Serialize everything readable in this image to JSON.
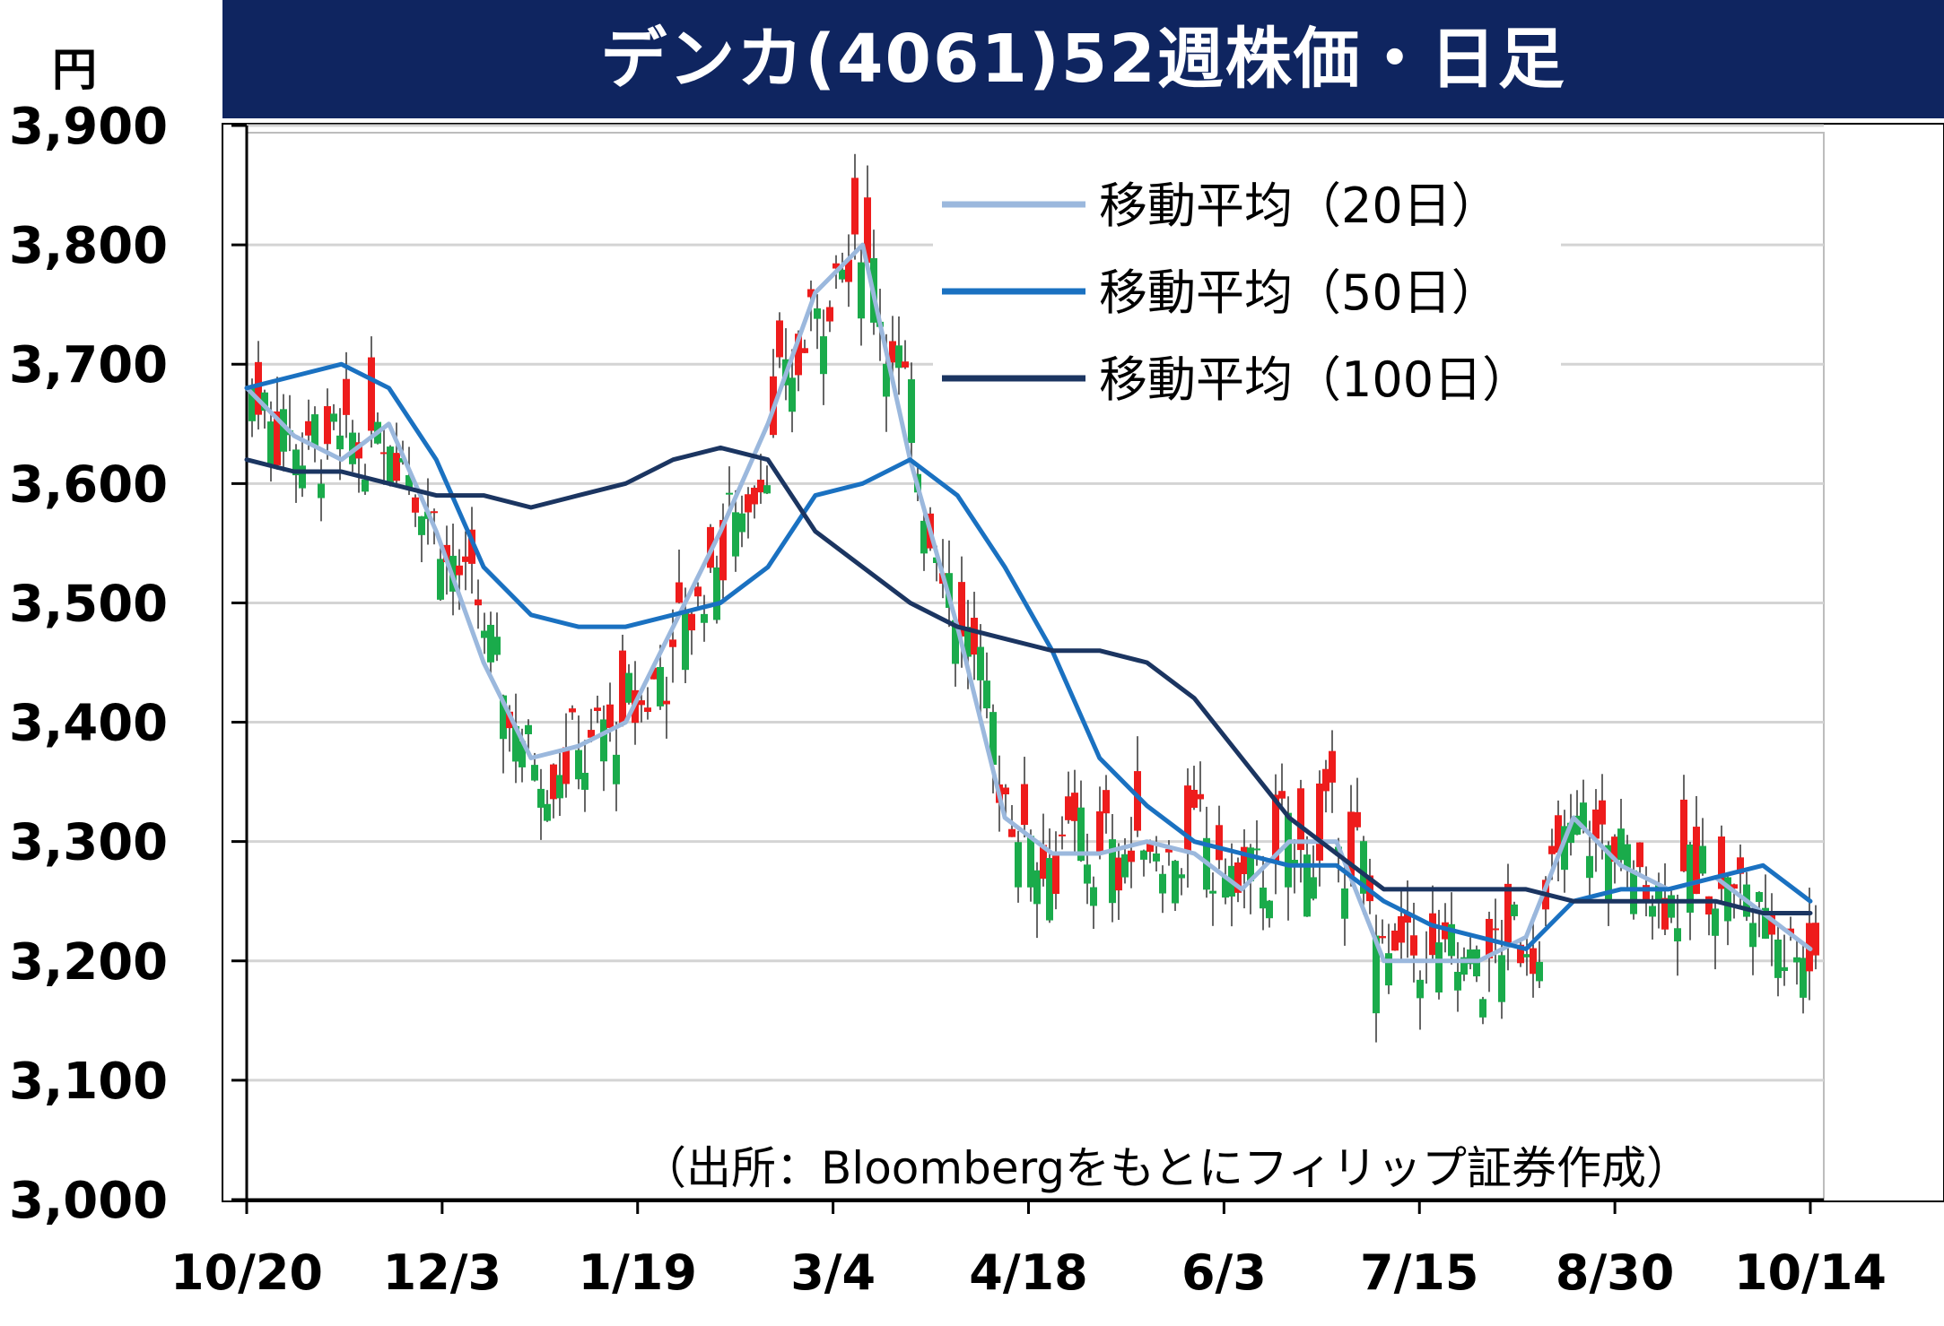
{
  "header": {
    "title": "デンカ(4061)52週株価・日足"
  },
  "unit_label": "円",
  "source_note": "（出所：Bloombergをもとにフィリップ証券作成）",
  "colors": {
    "up": "#ee1c1c",
    "down": "#1aab4b",
    "ma20": "#9bb8dd",
    "ma50": "#1a71c1",
    "ma100": "#1b3561",
    "title_bg": "#0f2560"
  },
  "chart_data": {
    "type": "candlestick",
    "title": "デンカ(4061)52週株価・日足",
    "ylabel": "円",
    "ylim": [
      3000,
      3900
    ],
    "yticks": [
      3000,
      3100,
      3200,
      3300,
      3400,
      3500,
      3600,
      3700,
      3800,
      3900
    ],
    "ytick_labels": [
      "3,000",
      "3,100",
      "3,200",
      "3,300",
      "3,400",
      "3,500",
      "3,600",
      "3,700",
      "3,800",
      "3,900"
    ],
    "xticks": [
      "10/20",
      "12/3",
      "1/19",
      "3/4",
      "4/18",
      "6/3",
      "7/15",
      "8/30",
      "10/14"
    ],
    "grid": true,
    "legend_position": "top-right",
    "series": [
      {
        "name": "移動平均（20日）",
        "color": "#9bb8dd",
        "values": [
          3680,
          3640,
          3620,
          3650,
          3560,
          3450,
          3370,
          3380,
          3400,
          3480,
          3560,
          3650,
          3760,
          3800,
          3620,
          3480,
          3320,
          3290,
          3290,
          3300,
          3290,
          3260,
          3300,
          3300,
          3200,
          3200,
          3200,
          3220,
          3320,
          3280,
          3260,
          3270,
          3240,
          3210
        ]
      },
      {
        "name": "移動平均（50日）",
        "color": "#1a71c1",
        "values": [
          3680,
          3690,
          3700,
          3680,
          3620,
          3530,
          3490,
          3480,
          3480,
          3490,
          3500,
          3530,
          3590,
          3600,
          3620,
          3590,
          3530,
          3460,
          3370,
          3330,
          3300,
          3290,
          3280,
          3280,
          3250,
          3230,
          3220,
          3210,
          3250,
          3260,
          3260,
          3270,
          3280,
          3250
        ]
      },
      {
        "name": "移動平均（100日）",
        "color": "#1b3561",
        "values": [
          3620,
          3610,
          3610,
          3600,
          3590,
          3590,
          3580,
          3590,
          3600,
          3620,
          3630,
          3620,
          3560,
          3530,
          3500,
          3480,
          3470,
          3460,
          3460,
          3450,
          3420,
          3370,
          3320,
          3290,
          3260,
          3260,
          3260,
          3260,
          3250,
          3250,
          3250,
          3250,
          3240,
          3240
        ]
      }
    ]
  }
}
